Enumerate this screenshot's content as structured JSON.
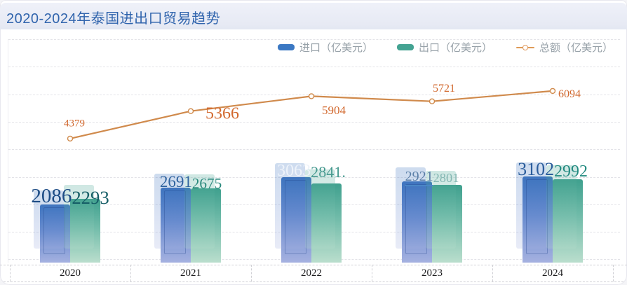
{
  "window": {
    "title": "2020-2024年泰国进出口贸易趋势"
  },
  "legend": [
    {
      "label": "进口（亿美元）",
      "type": "bar",
      "color": "#3b78c3"
    },
    {
      "label": "出口（亿美元）",
      "type": "bar",
      "color": "#44a392"
    },
    {
      "label": "总额（亿美元）",
      "type": "line",
      "color": "#df9a57"
    }
  ],
  "colors": {
    "title_text": "#3064ad",
    "titlebar_bg": "#e8ebf5",
    "line": "#d08a4c",
    "line_label": "#d2692f",
    "import_top": "#3a72bd",
    "import_bottom": "#a5b1e0",
    "export_top": "#3fa08e",
    "export_bottom": "#badecd",
    "legend_text": "#97a1a8"
  },
  "chart_data": {
    "type": "bar",
    "title": "2020-2024年泰国进出口贸易趋势",
    "categories": [
      "2020",
      "2021",
      "2022",
      "2023",
      "2024"
    ],
    "series": [
      {
        "name": "进口（亿美元）",
        "type": "bar",
        "values": [
          2086,
          2691,
          3063,
          2921,
          3102
        ],
        "labels": [
          "2086",
          "2691",
          "3063",
          "2921",
          "3102"
        ]
      },
      {
        "name": "出口（亿美元）",
        "type": "bar",
        "values": [
          2293,
          2675,
          2841,
          2801,
          2992
        ],
        "labels": [
          "2293",
          "2675",
          "2841.",
          "2801",
          "2992"
        ]
      },
      {
        "name": "总额（亿美元）",
        "type": "line",
        "values": [
          4379,
          5366,
          5904,
          5721,
          6094
        ],
        "labels": [
          "4379",
          "5366",
          "5904",
          "5721",
          "6094"
        ]
      }
    ],
    "xlabel": "",
    "ylabel": "",
    "ylim": [
      0,
      8000
    ],
    "grid": true,
    "legend_position": "top-right"
  }
}
